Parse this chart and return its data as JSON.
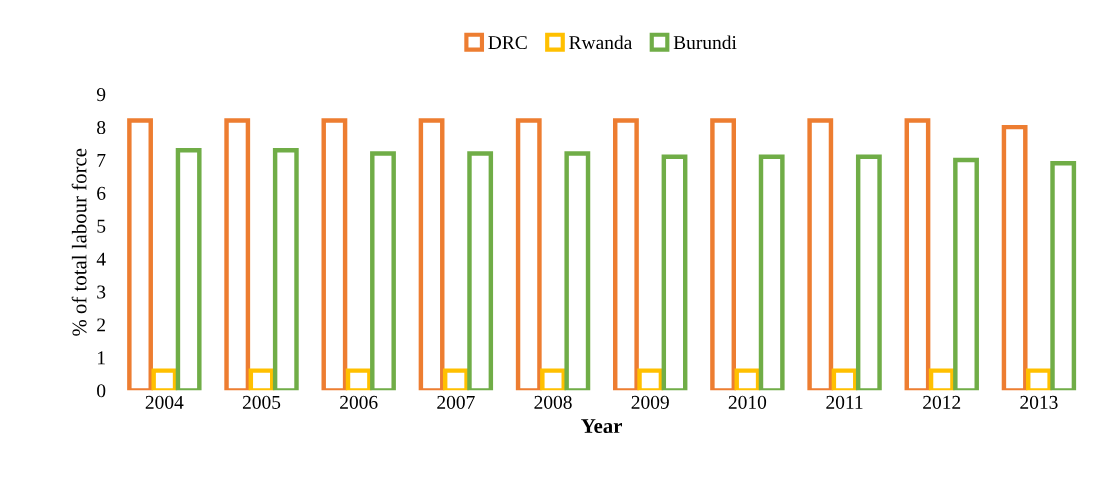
{
  "chart_data": {
    "type": "bar",
    "xlabel": "Year",
    "ylabel": "% of total labour force",
    "categories": [
      "2004",
      "2005",
      "2006",
      "2007",
      "2008",
      "2009",
      "2010",
      "2011",
      "2012",
      "2013"
    ],
    "series": [
      {
        "name": "DRC",
        "color": "#ed7d31",
        "values": [
          8.2,
          8.2,
          8.2,
          8.2,
          8.2,
          8.2,
          8.2,
          8.2,
          8.2,
          8.0
        ]
      },
      {
        "name": "Rwanda",
        "color": "#ffc000",
        "values": [
          0.6,
          0.6,
          0.6,
          0.6,
          0.6,
          0.6,
          0.6,
          0.6,
          0.6,
          0.6
        ]
      },
      {
        "name": "Burundi",
        "color": "#70ad47",
        "values": [
          7.3,
          7.3,
          7.2,
          7.2,
          7.2,
          7.1,
          7.1,
          7.1,
          7.0,
          6.9
        ]
      }
    ],
    "ylim": [
      0,
      9
    ],
    "yticks": [
      0,
      1,
      2,
      3,
      4,
      5,
      6,
      7,
      8,
      9
    ],
    "grid": false,
    "legend": "top"
  }
}
